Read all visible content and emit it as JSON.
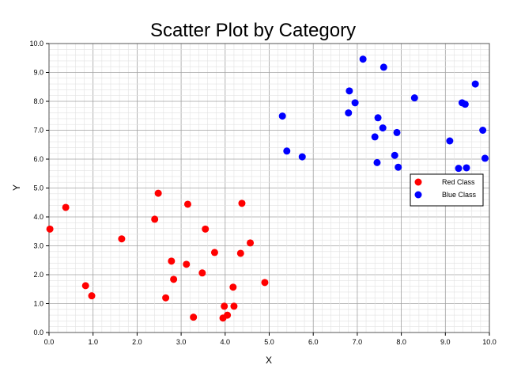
{
  "chart_data": {
    "type": "scatter",
    "title": "Scatter Plot by Category",
    "xlabel": "X",
    "ylabel": "Y",
    "xlim": [
      0,
      10
    ],
    "ylim": [
      0,
      10
    ],
    "xticks": [
      "0.0",
      "1.0",
      "2.0",
      "3.0",
      "4.0",
      "5.0",
      "6.0",
      "7.0",
      "8.0",
      "9.0",
      "10.0"
    ],
    "yticks": [
      "0.0",
      "1.0",
      "2.0",
      "3.0",
      "4.0",
      "5.0",
      "6.0",
      "7.0",
      "8.0",
      "9.0",
      "10.0"
    ],
    "grid": true,
    "legend_position": "right",
    "series": [
      {
        "name": "Red Class",
        "color": "#ff0000",
        "points": [
          [
            0.02,
            3.58
          ],
          [
            0.38,
            4.33
          ],
          [
            0.83,
            1.62
          ],
          [
            0.97,
            1.27
          ],
          [
            1.65,
            3.24
          ],
          [
            2.4,
            3.92
          ],
          [
            2.48,
            4.82
          ],
          [
            2.65,
            1.2
          ],
          [
            2.78,
            2.47
          ],
          [
            2.83,
            1.84
          ],
          [
            3.12,
            2.36
          ],
          [
            3.15,
            4.44
          ],
          [
            3.28,
            0.53
          ],
          [
            3.48,
            2.06
          ],
          [
            3.55,
            3.58
          ],
          [
            3.76,
            2.77
          ],
          [
            3.95,
            0.5
          ],
          [
            3.98,
            0.91
          ],
          [
            4.05,
            0.6
          ],
          [
            4.18,
            1.57
          ],
          [
            4.2,
            0.91
          ],
          [
            4.35,
            2.74
          ],
          [
            4.38,
            4.47
          ],
          [
            4.57,
            3.1
          ],
          [
            4.9,
            1.73
          ]
        ]
      },
      {
        "name": "Blue Class",
        "color": "#0000ff",
        "points": [
          [
            5.3,
            7.49
          ],
          [
            5.4,
            6.28
          ],
          [
            5.75,
            6.08
          ],
          [
            6.8,
            7.6
          ],
          [
            6.82,
            8.36
          ],
          [
            6.95,
            7.95
          ],
          [
            7.13,
            9.46
          ],
          [
            7.4,
            6.77
          ],
          [
            7.45,
            5.88
          ],
          [
            7.47,
            7.43
          ],
          [
            7.58,
            7.08
          ],
          [
            7.6,
            9.18
          ],
          [
            7.85,
            6.13
          ],
          [
            7.9,
            6.92
          ],
          [
            7.93,
            5.72
          ],
          [
            8.3,
            8.12
          ],
          [
            9.1,
            6.63
          ],
          [
            9.3,
            5.68
          ],
          [
            9.38,
            7.95
          ],
          [
            9.45,
            7.9
          ],
          [
            9.48,
            5.7
          ],
          [
            9.68,
            8.6
          ],
          [
            9.85,
            7.0
          ],
          [
            9.9,
            6.03
          ]
        ]
      }
    ]
  }
}
